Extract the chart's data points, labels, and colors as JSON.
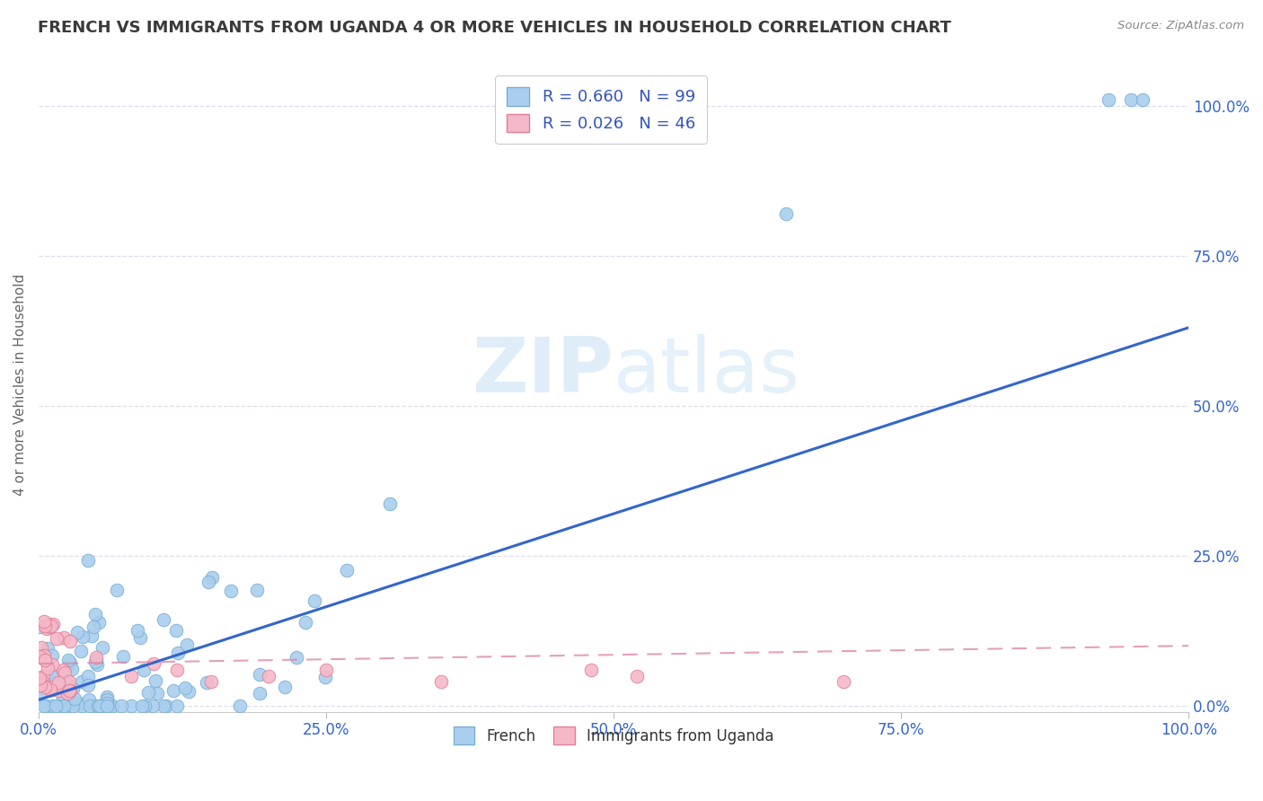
{
  "title": "FRENCH VS IMMIGRANTS FROM UGANDA 4 OR MORE VEHICLES IN HOUSEHOLD CORRELATION CHART",
  "source": "Source: ZipAtlas.com",
  "ylabel": "4 or more Vehicles in Household",
  "xlim": [
    0.0,
    1.0
  ],
  "ylim": [
    -0.01,
    1.08
  ],
  "xticks": [
    0.0,
    0.25,
    0.5,
    0.75,
    1.0
  ],
  "yticks": [
    0.0,
    0.25,
    0.5,
    0.75,
    1.0
  ],
  "xticklabels": [
    "0.0%",
    "25.0%",
    "50.0%",
    "75.0%",
    "100.0%"
  ],
  "yticklabels": [
    "0.0%",
    "25.0%",
    "50.0%",
    "75.0%",
    "100.0%"
  ],
  "title_color": "#3a3a3a",
  "title_fontsize": 13,
  "background_color": "#ffffff",
  "watermark_zip": "ZIP",
  "watermark_atlas": "atlas",
  "series1_name": "French",
  "series1_color": "#aacfee",
  "series1_edge_color": "#7aafd4",
  "series1_R": 0.66,
  "series1_N": 99,
  "series1_line_color": "#3366cc",
  "series2_name": "Immigrants from Uganda",
  "series2_color": "#f5b8c8",
  "series2_edge_color": "#e08098",
  "series2_R": 0.026,
  "series2_N": 46,
  "series2_line_color": "#dd88aa",
  "legend_text_color": "#3355bb",
  "grid_color": "#ddddee",
  "tick_color": "#3366cc",
  "axis_label_color": "#666666"
}
